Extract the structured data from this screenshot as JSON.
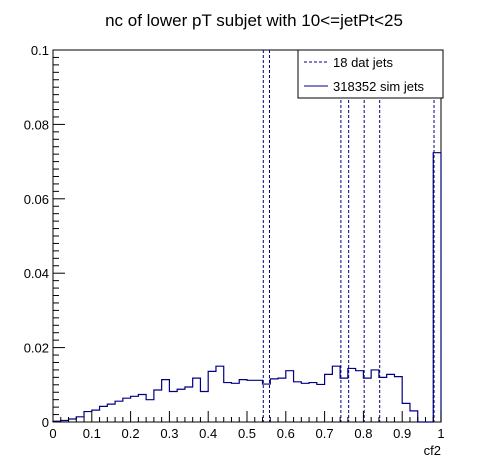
{
  "chart_data": {
    "type": "histogram",
    "title": "nc of lower pT subjet with 10<=jetPt<25",
    "xlabel": "cf2",
    "ylabel": "",
    "xlim": [
      0,
      1
    ],
    "ylim": [
      0,
      0.1
    ],
    "x_ticks": [
      "0",
      "0.1",
      "0.2",
      "0.3",
      "0.4",
      "0.5",
      "0.6",
      "0.7",
      "0.8",
      "0.9",
      "1"
    ],
    "y_ticks": [
      "0",
      "0.02",
      "0.04",
      "0.06",
      "0.08",
      "0.1"
    ],
    "grid": false,
    "legend_position": "top-right",
    "colors": {
      "sim": "#000080",
      "dat": "#000080",
      "axes": "#000000"
    },
    "series": [
      {
        "name": "318352 sim jets",
        "style": "solid",
        "bin_edges": [
          0.0,
          0.02,
          0.04,
          0.06,
          0.08,
          0.1,
          0.12,
          0.14,
          0.16,
          0.18,
          0.2,
          0.22,
          0.24,
          0.26,
          0.28,
          0.3,
          0.32,
          0.34,
          0.36,
          0.38,
          0.4,
          0.42,
          0.44,
          0.46,
          0.48,
          0.5,
          0.52,
          0.54,
          0.56,
          0.58,
          0.6,
          0.62,
          0.64,
          0.66,
          0.68,
          0.7,
          0.72,
          0.74,
          0.76,
          0.78,
          0.8,
          0.82,
          0.84,
          0.86,
          0.88,
          0.9,
          0.92,
          0.94,
          0.96,
          0.98,
          1.0
        ],
        "values": [
          0.0002,
          0.0004,
          0.0008,
          0.0014,
          0.0028,
          0.0032,
          0.0042,
          0.0048,
          0.0056,
          0.0064,
          0.0069,
          0.0074,
          0.006,
          0.0086,
          0.0114,
          0.0082,
          0.0088,
          0.0094,
          0.0118,
          0.0082,
          0.0136,
          0.015,
          0.0106,
          0.0104,
          0.0114,
          0.0112,
          0.0112,
          0.0102,
          0.0116,
          0.0118,
          0.0138,
          0.0108,
          0.0104,
          0.0106,
          0.0101,
          0.0128,
          0.015,
          0.0118,
          0.0144,
          0.0138,
          0.0118,
          0.014,
          0.012,
          0.0128,
          0.0122,
          0.005,
          0.003,
          0.0,
          0.0,
          0.0724
        ]
      },
      {
        "name": "18 dat jets",
        "style": "dashed",
        "positions": [
          0.542,
          0.558,
          0.742,
          0.762,
          0.802,
          0.842,
          0.982
        ]
      }
    ]
  }
}
